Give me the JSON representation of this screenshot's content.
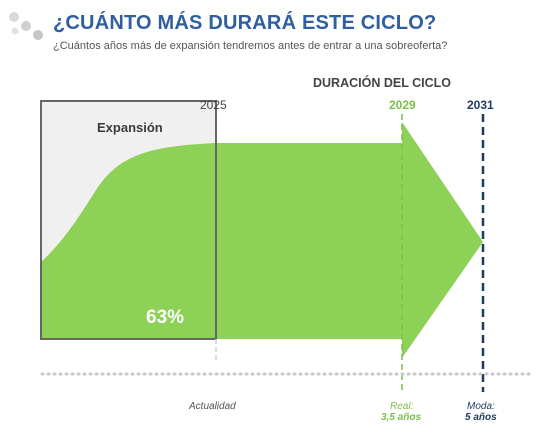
{
  "header": {
    "title": "¿CUÁNTO MÁS DURARÁ ESTE CICLO?",
    "subtitle": "¿Cuántos años más de expansión tendremos antes de entrar a una sobreoferta?"
  },
  "diagram": {
    "cycle_heading": "DURACIÓN DEL CICLO",
    "box_label": "Expansión",
    "percent_label": "63%",
    "percent_value": 63,
    "year_current": "2025",
    "year_real": "2029",
    "year_mode": "2031",
    "marker_current": "Actualidad",
    "marker_real_line1": "Real:",
    "marker_real_line2": "3,5 años",
    "marker_mode_line1": "Moda:",
    "marker_mode_line2": "5 años"
  },
  "colors": {
    "title": "#2f5fa0",
    "green_fill": "#8ed157",
    "green_text": "#7cc04b",
    "navy": "#1f3a5f",
    "box_border": "#666666",
    "box_fill": "#f0f0f0",
    "dotted_axis": "#c8c8c8"
  }
}
